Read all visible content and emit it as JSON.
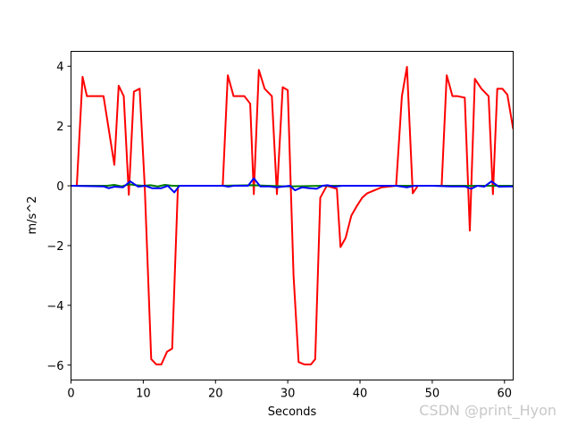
{
  "chart_data": {
    "type": "line",
    "xlabel": "Seconds",
    "ylabel": "m/s^2",
    "xlim": [
      0,
      61.2
    ],
    "ylim": [
      -6.5,
      4.5
    ],
    "xticks": [
      0,
      10,
      20,
      30,
      40,
      50,
      60
    ],
    "yticks": [
      -6,
      -4,
      -2,
      0,
      2,
      4
    ],
    "ytick_labels": [
      "−6",
      "−4",
      "−2",
      "0",
      "2",
      "4"
    ],
    "grid": false,
    "series": [
      {
        "color": "#ff0000",
        "x": [
          0.8,
          1.6,
          2.2,
          3.0,
          4.5,
          6.0,
          6.6,
          7.3,
          8.0,
          8.7,
          9.5,
          10.2,
          11.1,
          11.8,
          12.5,
          13.3,
          14.0,
          14.8,
          21.0,
          21.7,
          22.5,
          24.0,
          24.8,
          25.3,
          26.0,
          26.8,
          27.8,
          28.5,
          29.3,
          30.0,
          30.8,
          31.5,
          32.3,
          33.2,
          33.8,
          34.5,
          35.4,
          36.8,
          37.3,
          38.0,
          38.8,
          39.5,
          40.3,
          41.0,
          42.0,
          43.0,
          45.0,
          45.8,
          46.5,
          47.3,
          48.0,
          51.3,
          52.0,
          52.8,
          53.5,
          54.5,
          55.2,
          55.9,
          56.8,
          57.8,
          58.4,
          59.0,
          59.7,
          60.4,
          61.2
        ],
        "y": [
          0.0,
          3.65,
          3.0,
          3.0,
          3.0,
          0.7,
          3.35,
          3.0,
          -0.3,
          3.15,
          3.25,
          0.0,
          -5.8,
          -5.98,
          -5.98,
          -5.55,
          -5.45,
          0.0,
          0.0,
          3.7,
          3.0,
          3.0,
          2.75,
          -0.28,
          3.88,
          3.25,
          3.0,
          -0.28,
          3.3,
          3.2,
          -3.0,
          -5.9,
          -5.98,
          -5.98,
          -5.8,
          -0.4,
          0.0,
          -0.1,
          -2.05,
          -1.75,
          -1.0,
          -0.7,
          -0.4,
          -0.25,
          -0.15,
          -0.05,
          0.0,
          3.0,
          3.98,
          -0.25,
          0.0,
          0.0,
          3.7,
          3.0,
          3.0,
          2.95,
          -1.5,
          3.58,
          3.25,
          3.0,
          -0.28,
          3.25,
          3.25,
          3.05,
          1.9
        ]
      },
      {
        "color": "#008000",
        "x": [
          0,
          5.0,
          6.0,
          7.0,
          8.0,
          9.0,
          10.0,
          11.0,
          12.0,
          13.0,
          14.0,
          15.0,
          20.0,
          25.0,
          30.0,
          35.0,
          40.0,
          45.0,
          50.0,
          55.0,
          60.0,
          61.2
        ],
        "y": [
          0.0,
          0.0,
          0.03,
          -0.02,
          0.05,
          0.02,
          0.0,
          0.02,
          -0.02,
          0.03,
          0.0,
          0.0,
          0.0,
          0.02,
          -0.02,
          0.0,
          0.0,
          0.0,
          0.0,
          0.0,
          0.0,
          0.0
        ]
      },
      {
        "color": "#0000ff",
        "x": [
          0,
          4.5,
          5.2,
          6.0,
          7.2,
          8.2,
          9.3,
          10.3,
          11.2,
          12.5,
          13.4,
          14.3,
          15.0,
          21.0,
          21.8,
          22.5,
          24.5,
          25.3,
          26.2,
          27.5,
          28.5,
          29.5,
          30.3,
          31.0,
          32.0,
          33.0,
          34.0,
          34.8,
          35.5,
          36.5,
          37.5,
          40.0,
          45.0,
          46.5,
          47.5,
          50.0,
          52.5,
          54.5,
          55.4,
          56.2,
          57.2,
          58.2,
          59.2,
          61.2
        ],
        "y": [
          0.0,
          -0.02,
          -0.08,
          -0.03,
          -0.05,
          0.15,
          -0.03,
          0.0,
          -0.08,
          -0.08,
          0.0,
          -0.22,
          0.0,
          0.0,
          -0.03,
          0.0,
          0.0,
          0.25,
          -0.02,
          -0.02,
          -0.05,
          -0.02,
          0.0,
          -0.15,
          -0.05,
          -0.08,
          -0.1,
          0.0,
          0.02,
          -0.03,
          0.0,
          0.0,
          0.0,
          -0.05,
          0.0,
          0.0,
          -0.02,
          -0.02,
          -0.1,
          0.0,
          -0.03,
          0.15,
          -0.03,
          -0.02
        ]
      }
    ]
  },
  "watermark": "CSDN @print_Hyon"
}
